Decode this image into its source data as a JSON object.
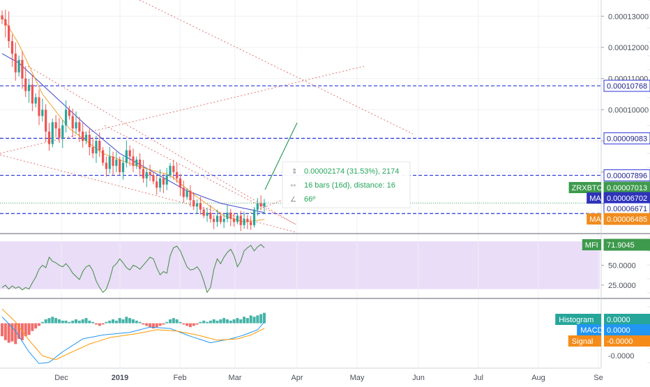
{
  "chart_data": {
    "type": "candlestick",
    "symbol": "ZRXBTC",
    "time_axis": {
      "labels": [
        "Dec",
        "2019",
        "Feb",
        "Mar",
        "Apr",
        "May",
        "Jun",
        "Jul",
        "Aug",
        "Se"
      ],
      "bold_labels": [
        "2019"
      ]
    },
    "price_axis": {
      "ticks": [
        "0.00013000",
        "0.00012000",
        "0.00011000",
        "0.00010000",
        "0.00009000",
        "0.00008000",
        "0.00007000"
      ],
      "ylim": [
        6.05e-05,
        0.0001352
      ]
    },
    "price_tags": [
      {
        "label": "",
        "value": "0.00010768",
        "style": "outline-blue"
      },
      {
        "label": "",
        "value": "0.00009083",
        "style": "outline-blue"
      },
      {
        "label": "",
        "value": "0.00007896",
        "style": "outline-blue"
      },
      {
        "label": "ZRXBTC",
        "value": "0.00007013",
        "style": "green"
      },
      {
        "label": "MA",
        "value": "0.00006702",
        "style": "navy"
      },
      {
        "label": "",
        "value": "0.00006671",
        "style": "outline-blue"
      },
      {
        "label": "MA",
        "value": "0.00006485",
        "style": "orange"
      }
    ],
    "horizontal_levels": [
      0.00010768,
      9.083e-05,
      7.896e-05,
      6.671e-05
    ],
    "measure_tool": {
      "price_change": "0.00002174 (31.53%), 2174",
      "bars": "16 bars (16d), distance: 16",
      "angle": "66º"
    },
    "candles_close": [
      0.000129,
      0.000127,
      0.000122,
      0.000118,
      0.000112,
      0.000116,
      0.00011,
      0.000106,
      0.000108,
      0.000102,
      0.000104,
      9.8e-05,
      0.0001,
      9.3e-05,
      8.9e-05,
      9.6e-05,
      9.4e-05,
      9.1e-05,
      9.5e-05,
      0.0001,
      9.8e-05,
      9.4e-05,
      9.6e-05,
      9.3e-05,
      9e-05,
      9.2e-05,
      8.8e-05,
      8.6e-05,
      9e-05,
      8.7e-05,
      8.3e-05,
      8.1e-05,
      8.5e-05,
      8.2e-05,
      8.4e-05,
      8e-05,
      8.3e-05,
      8.7e-05,
      8.5e-05,
      8.2e-05,
      8.4e-05,
      8.1e-05,
      7.8e-05,
      8e-05,
      7.9e-05,
      7.7e-05,
      7.5e-05,
      7.8e-05,
      7.6e-05,
      7.9e-05,
      8.2e-05,
      8e-05,
      7.8e-05,
      7.5e-05,
      7.2e-05,
      7.4e-05,
      7.1e-05,
      6.9e-05,
      7e-05,
      6.8e-05,
      6.6e-05,
      6.7e-05,
      6.5e-05,
      6.4e-05,
      6.6e-05,
      6.4e-05,
      6.5e-05,
      6.7e-05,
      6.5e-05,
      6.4e-05,
      6.6e-05,
      6.3e-05,
      6.5e-05,
      6.4e-05,
      6.3e-05,
      6.8e-05,
      7e-05,
      6.9e-05,
      7.01e-05
    ],
    "moving_averages": [
      {
        "label": "MA",
        "color": "#3f45c8",
        "last": "0.00006702",
        "anchors": [
          [
            0,
            0.000118
          ],
          [
            5,
            0.000115
          ],
          [
            15,
            0.000105
          ],
          [
            25,
            9.5e-05
          ],
          [
            35,
            8.6e-05
          ],
          [
            45,
            8e-05
          ],
          [
            55,
            7.4e-05
          ],
          [
            65,
            7e-05
          ],
          [
            78,
            6.7e-05
          ]
        ]
      },
      {
        "label": "MA",
        "color": "#f0a030",
        "last": "0.00006485",
        "anchors": [
          [
            0,
            0.00013
          ],
          [
            5,
            0.000121
          ],
          [
            12,
            0.000105
          ],
          [
            20,
            9.4e-05
          ],
          [
            30,
            8.6e-05
          ],
          [
            40,
            8.2e-05
          ],
          [
            50,
            7.9e-05
          ],
          [
            58,
            7.2e-05
          ],
          [
            66,
            6.6e-05
          ],
          [
            72,
            6.4e-05
          ],
          [
            78,
            6.48e-05
          ]
        ]
      }
    ],
    "mfi": {
      "label": "MFI",
      "last": "71.9045",
      "ticks": [
        "50.0000",
        "25.0000"
      ],
      "band": [
        20,
        80
      ],
      "ylim": [
        10,
        88
      ],
      "values": [
        22,
        25,
        20,
        24,
        21,
        23,
        19,
        22,
        20,
        28,
        35,
        45,
        50,
        47,
        60,
        55,
        53,
        50,
        48,
        52,
        47,
        40,
        36,
        32,
        42,
        48,
        50,
        43,
        30,
        22,
        16,
        20,
        32,
        48,
        52,
        58,
        53,
        47,
        44,
        50,
        48,
        45,
        50,
        55,
        60,
        58,
        47,
        38,
        42,
        40,
        62,
        72,
        74,
        68,
        58,
        48,
        44,
        45,
        48,
        42,
        30,
        16,
        22,
        45,
        58,
        52,
        60,
        66,
        70,
        62,
        48,
        55,
        68,
        72,
        75,
        68,
        73,
        76,
        72
      ]
    },
    "macd": {
      "ticks": [
        "0.0000",
        "-0.0000"
      ],
      "ylim": [
        -3.4e-06,
        1.8e-06
      ],
      "histogram_label": "Histogram",
      "histogram_value": "0.0000",
      "macd_label": "MACD",
      "macd_value": "0.0000",
      "signal_label": "Signal",
      "signal_value": "-0.0000",
      "histogram": [
        -1e-06,
        -1.3e-06,
        -1.5e-06,
        -1.4e-06,
        -1.6e-06,
        -1.2e-06,
        -1.3e-06,
        -1e-06,
        -9e-07,
        -6e-07,
        -4e-07,
        -2e-07,
        1e-07,
        3e-07,
        4e-07,
        5e-07,
        4e-07,
        3e-07,
        2e-07,
        2e-07,
        1e-07,
        2e-07,
        3e-07,
        2e-07,
        3e-07,
        4e-07,
        2e-07,
        1e-07,
        -1e-07,
        -2e-07,
        -1e-07,
        1e-07,
        2e-07,
        3e-07,
        2e-07,
        4e-07,
        3e-07,
        5e-07,
        4e-07,
        3e-07,
        2e-07,
        1e-07,
        -1e-07,
        -2e-07,
        -3e-07,
        -4e-07,
        -3e-07,
        -2e-07,
        -1e-07,
        1e-07,
        3e-07,
        4e-07,
        3e-07,
        1e-07,
        -1e-07,
        -2e-07,
        -3e-07,
        -2e-07,
        -1e-07,
        1e-07,
        2e-07,
        1e-07,
        2e-07,
        3e-07,
        2e-07,
        3e-07,
        4e-07,
        3e-07,
        2e-07,
        3e-07,
        4e-07,
        3e-07,
        5e-07,
        4e-07,
        6e-07,
        5e-07,
        6e-07,
        7e-07,
        8e-07
      ],
      "macd_anchors": [
        [
          0,
          5e-07
        ],
        [
          4,
          -6e-07
        ],
        [
          8,
          -2.2e-06
        ],
        [
          11,
          -3.1e-06
        ],
        [
          14,
          -3e-06
        ],
        [
          18,
          -2.2e-06
        ],
        [
          24,
          -1.2e-06
        ],
        [
          30,
          -9e-07
        ],
        [
          38,
          -7e-07
        ],
        [
          44,
          -3e-07
        ],
        [
          50,
          -4e-07
        ],
        [
          56,
          -1e-06
        ],
        [
          62,
          -1.5e-06
        ],
        [
          68,
          -1.2e-06
        ],
        [
          72,
          -9e-07
        ],
        [
          76,
          -5e-07
        ],
        [
          78,
          1e-07
        ]
      ],
      "signal_anchors": [
        [
          0,
          1.1e-06
        ],
        [
          4,
          1e-07
        ],
        [
          8,
          -1.3e-06
        ],
        [
          12,
          -2.5e-06
        ],
        [
          16,
          -2.8e-06
        ],
        [
          20,
          -2.3e-06
        ],
        [
          26,
          -1.6e-06
        ],
        [
          32,
          -1.1e-06
        ],
        [
          40,
          -8e-07
        ],
        [
          46,
          -5e-07
        ],
        [
          52,
          -6e-07
        ],
        [
          58,
          -9e-07
        ],
        [
          64,
          -1.3e-06
        ],
        [
          70,
          -1.2e-06
        ],
        [
          74,
          -9e-07
        ],
        [
          78,
          -4e-07
        ]
      ]
    },
    "colors": {
      "up": "#26a69a",
      "down": "#ef5350",
      "level": "#2a34d8",
      "trend": "#e57373",
      "mfi": "#438b43",
      "mfi_band": "#e9ddf7",
      "histogram_up": "#26a69a",
      "histogram_down": "#ef5350",
      "macd": "#2196f3",
      "signal": "#ff9800"
    }
  }
}
